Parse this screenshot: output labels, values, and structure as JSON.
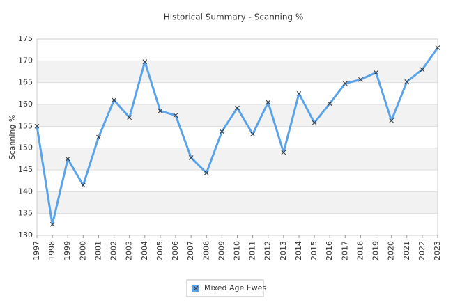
{
  "chart_data": {
    "type": "line",
    "title": "Historical Summary - Scanning %",
    "y_label": "Scanning %",
    "categories": [
      "1997",
      "1998",
      "1999",
      "2000",
      "2001",
      "2002",
      "2003",
      "2004",
      "2005",
      "2006",
      "2007",
      "2008",
      "2009",
      "2010",
      "2011",
      "2012",
      "2013",
      "2014",
      "2015",
      "2016",
      "2017",
      "2018",
      "2019",
      "2020",
      "2021",
      "2022",
      "2023"
    ],
    "series": [
      {
        "name": "Mixed Age Ewes",
        "color": "#5ba3e8",
        "values": [
          155,
          132.5,
          147.5,
          141.5,
          152.5,
          161,
          157,
          169.8,
          158.5,
          157.5,
          147.8,
          144.3,
          153.8,
          159.2,
          153.2,
          160.5,
          149,
          162.5,
          155.8,
          160.2,
          164.8,
          165.7,
          167.3,
          156.3,
          165.2,
          168,
          173
        ]
      }
    ],
    "ylim": [
      130,
      175
    ],
    "yticks": [
      130,
      135,
      140,
      145,
      150,
      155,
      160,
      165,
      170,
      175
    ],
    "grid": true
  }
}
